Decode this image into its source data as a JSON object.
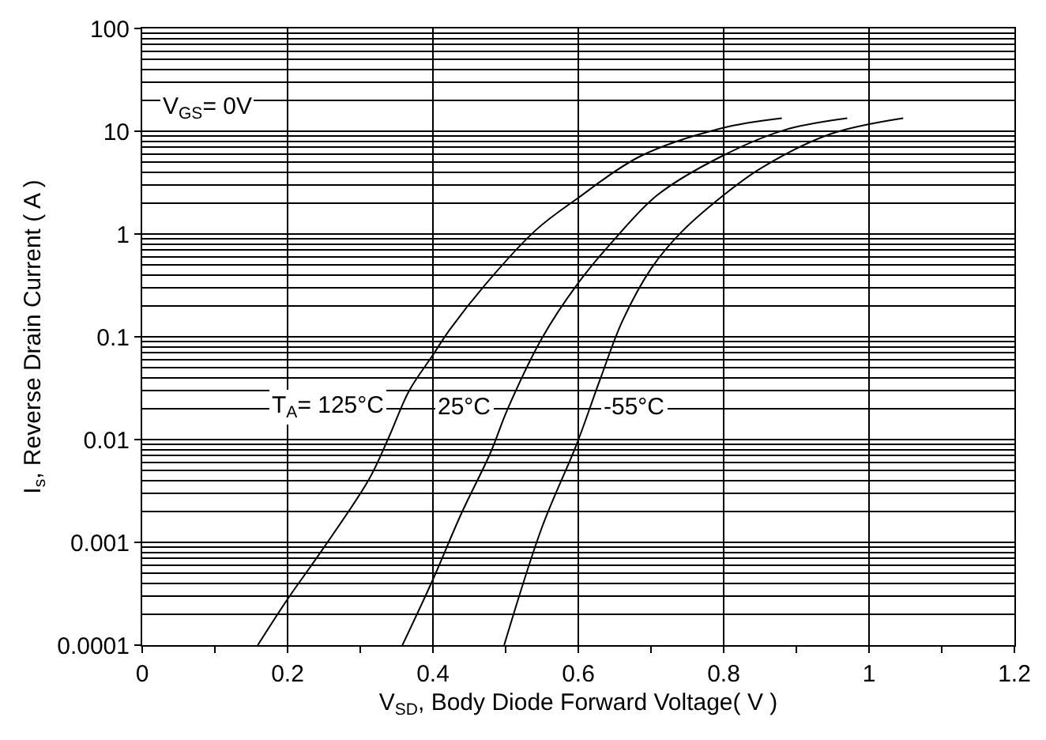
{
  "chart_data": {
    "type": "line",
    "xlabel": "V$_{SD}$, Body Diode Forward Voltage( V )",
    "ylabel": "I$_{s}$, Reverse Drain Current ( A )",
    "series": [
      {
        "color": "#000000",
        "x": [
          0.159,
          0.2,
          0.248,
          0.312,
          0.339,
          0.367,
          0.399,
          0.423,
          0.471,
          0.542,
          0.598,
          0.685,
          0.797,
          0.88
        ],
        "values": [
          0.0001,
          0.00028,
          0.00085,
          0.0041,
          0.0104,
          0.0296,
          0.065,
          0.117,
          0.316,
          1.1,
          2.2,
          5.7,
          10.7,
          13.4
        ]
      },
      {
        "color": "#000000",
        "x": [
          0.358,
          0.399,
          0.439,
          0.479,
          0.503,
          0.55,
          0.598,
          0.654,
          0.709,
          0.797,
          0.884,
          0.97
        ],
        "values": [
          0.0001,
          0.00042,
          0.0019,
          0.0074,
          0.02,
          0.097,
          0.32,
          0.96,
          2.4,
          5.7,
          10.3,
          13.4
        ]
      },
      {
        "color": "#000000",
        "x": [
          0.498,
          0.55,
          0.598,
          0.63,
          0.661,
          0.701,
          0.741,
          0.797,
          0.852,
          0.947,
          1.047
        ],
        "values": [
          0.0001,
          0.0014,
          0.0091,
          0.0385,
          0.144,
          0.47,
          1.03,
          2.3,
          4.4,
          9.4,
          13.4
        ]
      }
    ],
    "annotations": [
      "V$_{GS}$= 0V",
      "T$_{A}$= 125°C",
      "25°C",
      "-55°C"
    ],
    "xlim": [
      0,
      1.2
    ],
    "xticks": [
      0,
      0.2,
      0.4,
      0.6,
      0.8,
      1,
      1.2
    ],
    "ylim": [
      0.0001,
      100
    ],
    "yticks": [
      0.0001,
      0.001,
      0.01,
      0.1,
      1,
      10,
      100
    ],
    "log": "y",
    "grid": true,
    "marker": "none",
    "line_style": "solid"
  }
}
